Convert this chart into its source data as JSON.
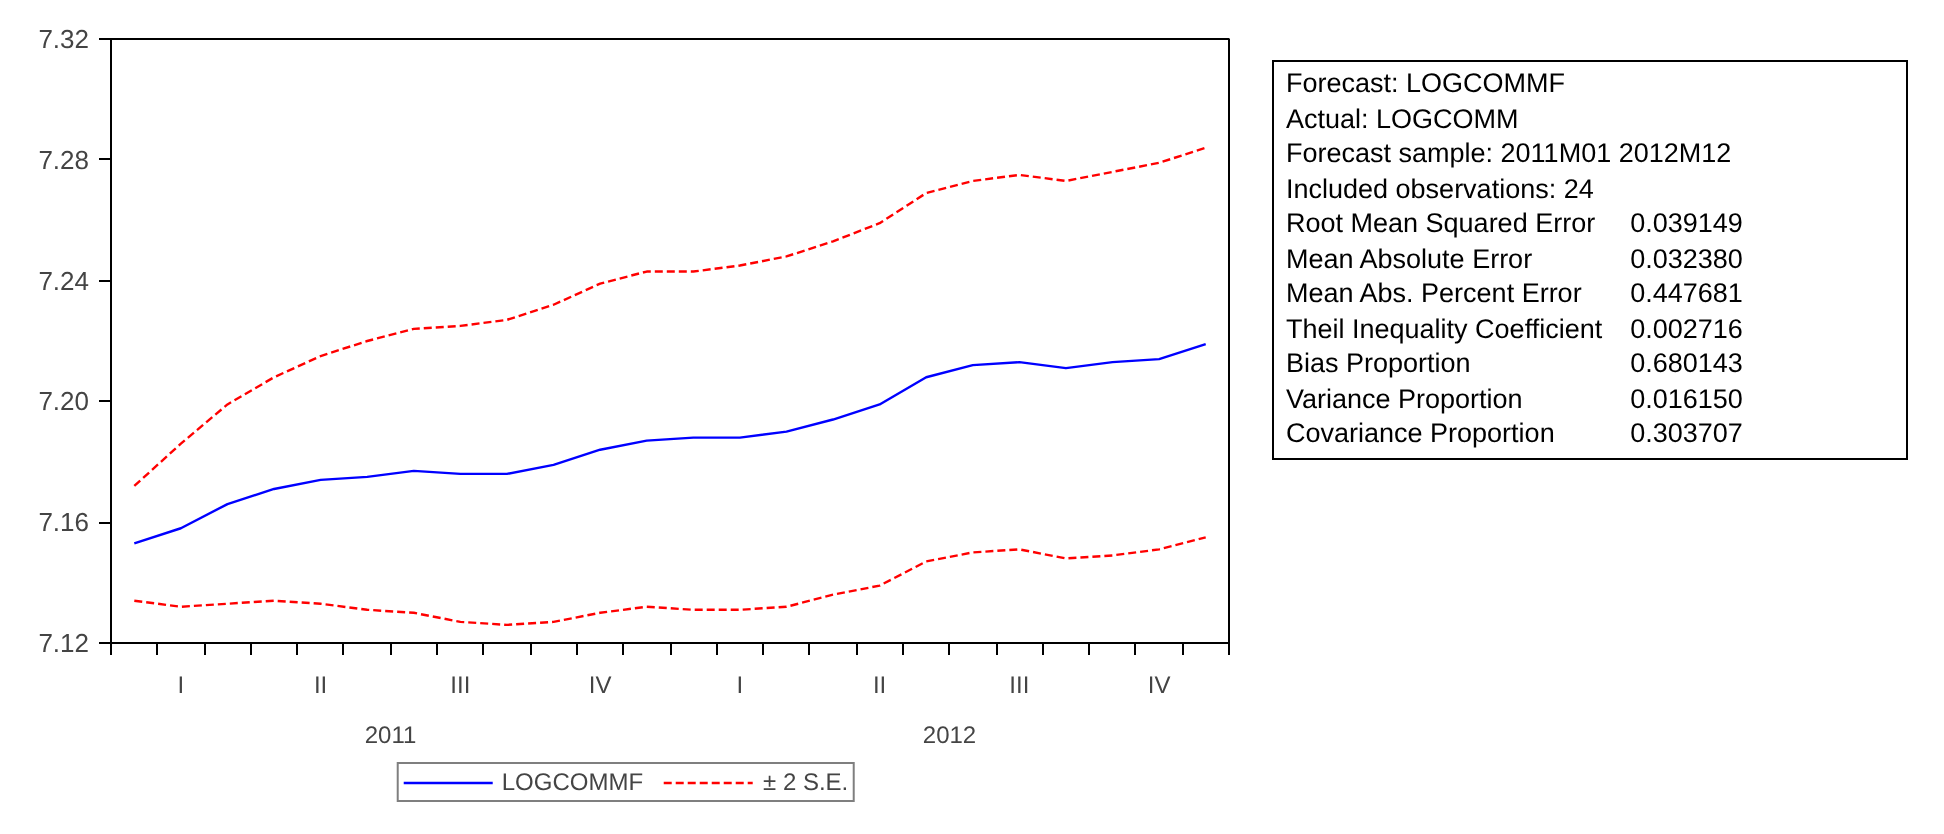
{
  "chart_data": {
    "type": "line",
    "categories": [
      null,
      "I",
      null,
      null,
      "II",
      null,
      null,
      "III",
      null,
      null,
      "IV",
      null,
      null,
      "I",
      null,
      null,
      "II",
      null,
      null,
      "III",
      null,
      null,
      "IV",
      null
    ],
    "series": [
      {
        "name": "LOGCOMMF",
        "color": "#0000ff",
        "line_style": "solid",
        "values": [
          7.153,
          7.158,
          7.166,
          7.171,
          7.174,
          7.175,
          7.177,
          7.176,
          7.176,
          7.179,
          7.184,
          7.187,
          7.188,
          7.188,
          7.19,
          7.194,
          7.199,
          7.208,
          7.212,
          7.213,
          7.211,
          7.213,
          7.214,
          7.219
        ]
      },
      {
        "name": "± 2 S.E.",
        "color": "#ff0000",
        "line_style": "dashed",
        "values": [
          7.172,
          7.186,
          7.199,
          7.208,
          7.215,
          7.22,
          7.224,
          7.225,
          7.227,
          7.232,
          7.239,
          7.243,
          7.243,
          7.245,
          7.248,
          7.253,
          7.259,
          7.269,
          7.273,
          7.275,
          7.273,
          7.276,
          7.279,
          7.284
        ]
      },
      {
        "color": "#ff0000",
        "line_style": "dashed",
        "values": [
          7.134,
          7.132,
          7.133,
          7.134,
          7.133,
          7.131,
          7.13,
          7.127,
          7.126,
          7.127,
          7.13,
          7.132,
          7.131,
          7.131,
          7.132,
          7.136,
          7.139,
          7.147,
          7.15,
          7.151,
          7.148,
          7.149,
          7.151,
          7.155
        ]
      }
    ],
    "ylim": [
      7.12,
      7.32
    ],
    "yticks": [
      7.12,
      7.16,
      {
        "value": 7.2,
        "label": "7.20"
      },
      7.24,
      7.28,
      7.32
    ],
    "grid": false,
    "legend": "bottom",
    "marker": "none",
    "annotations": [
      "2011",
      "2012",
      "Forecast: LOGCOMMF",
      "Actual: LOGCOMM",
      "Forecast sample: 2011M01 2012M12",
      "Included observations: 24",
      "Root Mean Squared Error 0.039149",
      "Mean Absolute Error 0.032380",
      "Mean Abs. Percent Error 0.447681",
      "Theil Inequality Coefficient 0.002716",
      "Bias Proportion 0.680143",
      "Variance Proportion 0.016150",
      "Covariance Proportion 0.303707"
    ]
  }
}
